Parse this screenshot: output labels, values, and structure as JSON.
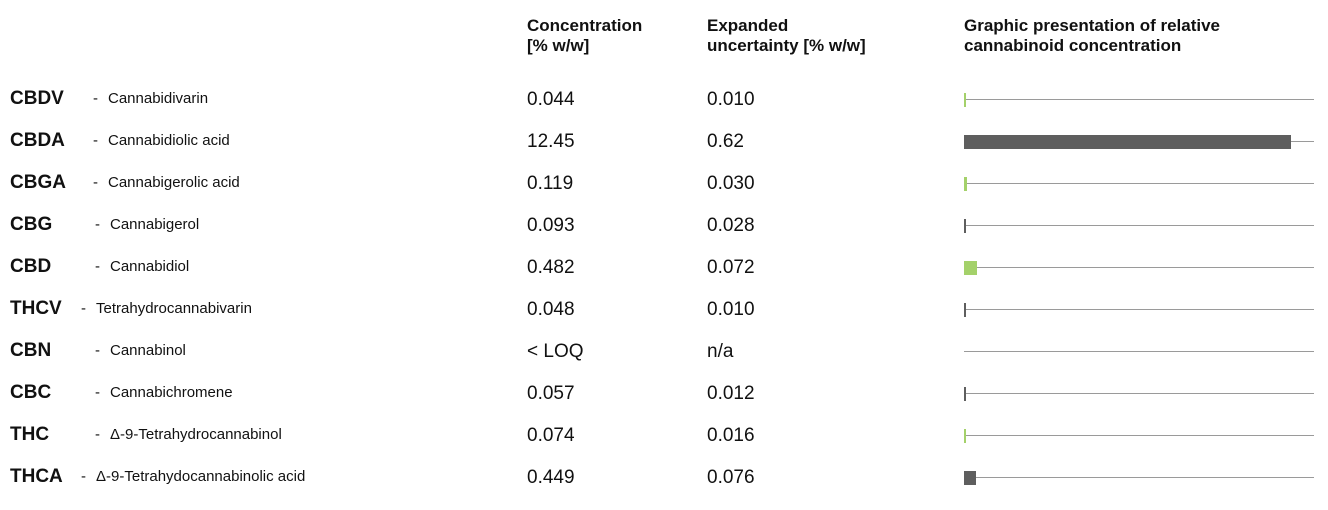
{
  "headers": {
    "concentration": "Concentration\n[% w/w]",
    "uncertainty": "Expanded\nuncertainty [% w/w]",
    "graphic": "Graphic presentation of relative\ncannabinoid concentration"
  },
  "colors": {
    "green": "#a4d16a",
    "dark": "#5e5e5e",
    "line": "#9a9a9a"
  },
  "rows": [
    {
      "abbr": "CBDV",
      "dash": "-",
      "name": "Cannabidivarin",
      "concentration": "0.044",
      "uncertainty": "0.010",
      "bar_value": 0.044,
      "bar_color": "green"
    },
    {
      "abbr": "CBDA",
      "dash": "-",
      "name": "Cannabidiolic acid",
      "concentration": "12.45",
      "uncertainty": "0.62",
      "bar_value": 12.45,
      "bar_color": "dark"
    },
    {
      "abbr": "CBGA",
      "dash": "-",
      "name": "Cannabigerolic acid",
      "concentration": "0.119",
      "uncertainty": "0.030",
      "bar_value": 0.119,
      "bar_color": "green"
    },
    {
      "abbr": "CBG",
      "dash": "-",
      "name": "Cannabigerol",
      "concentration": "0.093",
      "uncertainty": "0.028",
      "bar_value": 0.093,
      "bar_color": "dark"
    },
    {
      "abbr": "CBD",
      "dash": "-",
      "name": "Cannabidiol",
      "concentration": "0.482",
      "uncertainty": "0.072",
      "bar_value": 0.482,
      "bar_color": "green"
    },
    {
      "abbr": "THCV",
      "dash": "-",
      "name": "Tetrahydrocannabivarin",
      "concentration": "0.048",
      "uncertainty": "0.010",
      "bar_value": 0.048,
      "bar_color": "dark"
    },
    {
      "abbr": "CBN",
      "dash": "-",
      "name": "Cannabinol",
      "concentration": "< LOQ",
      "uncertainty": "n/a",
      "bar_value": 0,
      "bar_color": "dark"
    },
    {
      "abbr": "CBC",
      "dash": "-",
      "name": "Cannabichromene",
      "concentration": "0.057",
      "uncertainty": "0.012",
      "bar_value": 0.057,
      "bar_color": "dark"
    },
    {
      "abbr": "THC",
      "dash": "-",
      "name": "Δ-9-Tetrahydrocannabinol",
      "concentration": "0.074",
      "uncertainty": "0.016",
      "bar_value": 0.074,
      "bar_color": "green"
    },
    {
      "abbr": "THCA",
      "dash": "-",
      "name": "Δ-9-Tetrahydocannabinolic acid",
      "concentration": "0.449",
      "uncertainty": "0.076",
      "bar_value": 0.449,
      "bar_color": "dark"
    }
  ]
}
